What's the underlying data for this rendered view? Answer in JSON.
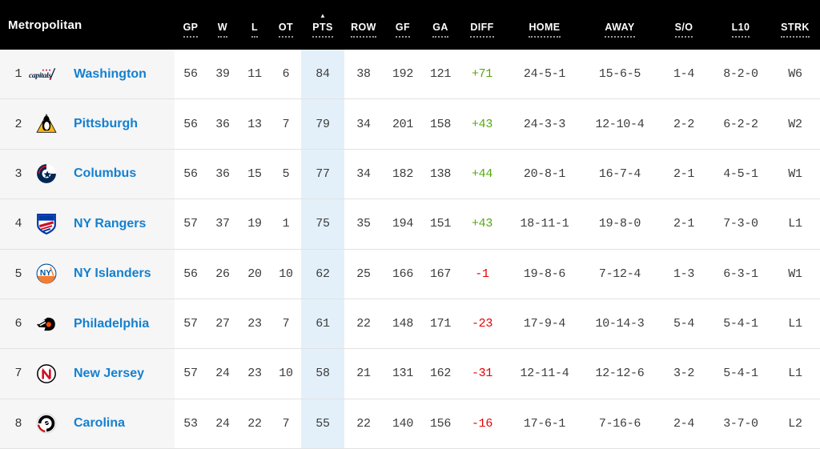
{
  "standings": {
    "division": "Metropolitan",
    "sort": {
      "column": "PTS",
      "direction_icon": "▲"
    },
    "colors": {
      "header_bg": "#000000",
      "link_blue": "#1480d0",
      "positive_diff": "#56a80f",
      "negative_diff": "#e30000",
      "pts_column_tint": "#e3f0f9",
      "team_column_bg": "#f6f6f6"
    },
    "columns": [
      {
        "key": "gp",
        "label": "GP"
      },
      {
        "key": "w",
        "label": "W"
      },
      {
        "key": "l",
        "label": "L"
      },
      {
        "key": "ot",
        "label": "OT"
      },
      {
        "key": "pts",
        "label": "PTS"
      },
      {
        "key": "row",
        "label": "ROW"
      },
      {
        "key": "gf",
        "label": "GF"
      },
      {
        "key": "ga",
        "label": "GA"
      },
      {
        "key": "diff",
        "label": "DIFF"
      },
      {
        "key": "home",
        "label": "HOME"
      },
      {
        "key": "away",
        "label": "AWAY"
      },
      {
        "key": "so",
        "label": "S/O"
      },
      {
        "key": "l10",
        "label": "L10"
      },
      {
        "key": "strk",
        "label": "STRK"
      }
    ],
    "rows": [
      {
        "rank": "1",
        "logo": "capitals",
        "team": "Washington",
        "gp": "56",
        "w": "39",
        "l": "11",
        "ot": "6",
        "pts": "84",
        "row": "38",
        "gf": "192",
        "ga": "121",
        "diff": "+71",
        "home": "24-5-1",
        "away": "15-6-5",
        "so": "1-4",
        "l10": "8-2-0",
        "strk": "W6"
      },
      {
        "rank": "2",
        "logo": "penguins",
        "team": "Pittsburgh",
        "gp": "56",
        "w": "36",
        "l": "13",
        "ot": "7",
        "pts": "79",
        "row": "34",
        "gf": "201",
        "ga": "158",
        "diff": "+43",
        "home": "24-3-3",
        "away": "12-10-4",
        "so": "2-2",
        "l10": "6-2-2",
        "strk": "W2"
      },
      {
        "rank": "3",
        "logo": "bluejackets",
        "team": "Columbus",
        "gp": "56",
        "w": "36",
        "l": "15",
        "ot": "5",
        "pts": "77",
        "row": "34",
        "gf": "182",
        "ga": "138",
        "diff": "+44",
        "home": "20-8-1",
        "away": "16-7-4",
        "so": "2-1",
        "l10": "4-5-1",
        "strk": "W1"
      },
      {
        "rank": "4",
        "logo": "rangers",
        "team": "NY Rangers",
        "gp": "57",
        "w": "37",
        "l": "19",
        "ot": "1",
        "pts": "75",
        "row": "35",
        "gf": "194",
        "ga": "151",
        "diff": "+43",
        "home": "18-11-1",
        "away": "19-8-0",
        "so": "2-1",
        "l10": "7-3-0",
        "strk": "L1"
      },
      {
        "rank": "5",
        "logo": "islanders",
        "team": "NY Islanders",
        "gp": "56",
        "w": "26",
        "l": "20",
        "ot": "10",
        "pts": "62",
        "row": "25",
        "gf": "166",
        "ga": "167",
        "diff": "-1",
        "home": "19-8-6",
        "away": "7-12-4",
        "so": "1-3",
        "l10": "6-3-1",
        "strk": "W1"
      },
      {
        "rank": "6",
        "logo": "flyers",
        "team": "Philadelphia",
        "gp": "57",
        "w": "27",
        "l": "23",
        "ot": "7",
        "pts": "61",
        "row": "22",
        "gf": "148",
        "ga": "171",
        "diff": "-23",
        "home": "17-9-4",
        "away": "10-14-3",
        "so": "5-4",
        "l10": "5-4-1",
        "strk": "L1"
      },
      {
        "rank": "7",
        "logo": "devils",
        "team": "New Jersey",
        "gp": "57",
        "w": "24",
        "l": "23",
        "ot": "10",
        "pts": "58",
        "row": "21",
        "gf": "131",
        "ga": "162",
        "diff": "-31",
        "home": "12-11-4",
        "away": "12-12-6",
        "so": "3-2",
        "l10": "5-4-1",
        "strk": "L1"
      },
      {
        "rank": "8",
        "logo": "hurricanes",
        "team": "Carolina",
        "gp": "53",
        "w": "24",
        "l": "22",
        "ot": "7",
        "pts": "55",
        "row": "22",
        "gf": "140",
        "ga": "156",
        "diff": "-16",
        "home": "17-6-1",
        "away": "7-16-6",
        "so": "2-4",
        "l10": "3-7-0",
        "strk": "L2"
      }
    ]
  }
}
